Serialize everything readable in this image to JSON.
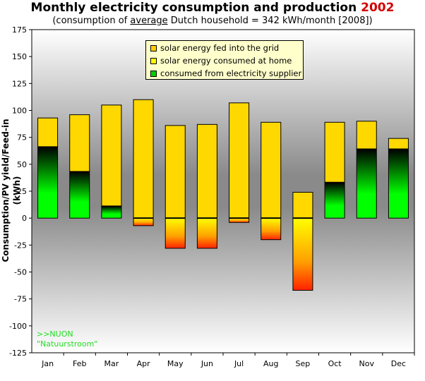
{
  "header": {
    "title_main": "Monthly electricity consumption and production",
    "title_year": "2002",
    "subtitle_pre": "(consumption of ",
    "subtitle_underlined": "average",
    "subtitle_post": " Dutch household = 342 kWh/month [2008])"
  },
  "note": {
    "line1": ">>NUON",
    "line2": "\"Natuurstroom\""
  },
  "colors": {
    "fed": "#ffcc00",
    "home": "#ffff00",
    "supplier": "#00ff00",
    "title_year": "#d40000"
  },
  "chart_data": {
    "type": "bar",
    "ylabel": "Consumption/PV yield/Feed-in (kWh)",
    "ylim": [
      -125,
      175
    ],
    "yticks": [
      -125,
      -100,
      -75,
      -50,
      -25,
      0,
      25,
      50,
      75,
      100,
      125,
      150,
      175
    ],
    "categories": [
      "Jan",
      "Feb",
      "Mar",
      "Apr",
      "May",
      "Jun",
      "Jul",
      "Aug",
      "Sep",
      "Oct",
      "Nov",
      "Dec"
    ],
    "series": [
      {
        "name": "solar energy fed into the grid",
        "values": [
          0,
          0,
          0,
          -7,
          -28,
          -28,
          -4,
          -20,
          -67,
          0,
          0,
          0
        ]
      },
      {
        "name": "solar energy consumed at home",
        "values": [
          27,
          53,
          94,
          110,
          86,
          87,
          107,
          89,
          24,
          56,
          26,
          10
        ]
      },
      {
        "name": "consumed from electricity supplier",
        "values": [
          66,
          43,
          11,
          0,
          0,
          0,
          0,
          0,
          0,
          33,
          64,
          64
        ]
      }
    ],
    "legend_position": "top-center"
  }
}
